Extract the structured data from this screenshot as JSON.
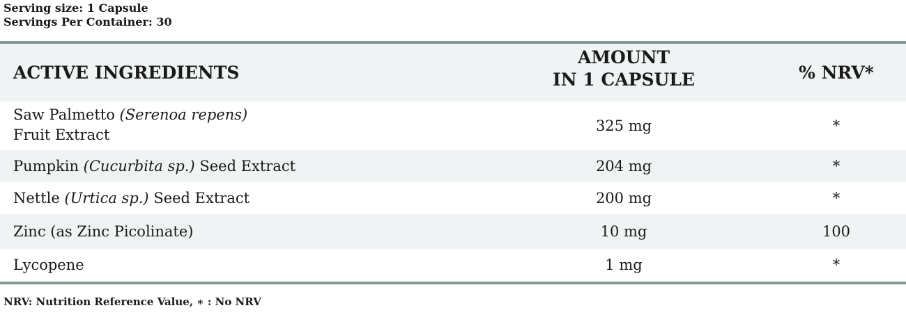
{
  "serving": {
    "size": "Serving size: 1 Capsule",
    "per_container": "Servings Per Container: 30"
  },
  "table": {
    "headers": {
      "ingredient": "ACTIVE INGREDIENTS",
      "amount_line1": "AMOUNT",
      "amount_line2": "IN 1 CAPSULE",
      "nrv": "% NRV*"
    },
    "rows": [
      {
        "name": "Saw Palmetto ",
        "latin": "(Serenoa repens)",
        "name_line2": "Fruit Extract",
        "amount": "325 mg",
        "nrv": "*"
      },
      {
        "name": "Pumpkin ",
        "latin": "(Cucurbita sp.)",
        "suffix": " Seed Extract",
        "amount": "204 mg",
        "nrv": "*"
      },
      {
        "name": "Nettle ",
        "latin": "(Urtica sp.)",
        "suffix": " Seed Extract",
        "amount": "200 mg",
        "nrv": "*"
      },
      {
        "name": "Zinc (as Zinc Picolinate)",
        "amount": "10 mg",
        "nrv": "100"
      },
      {
        "name": "Lycopene",
        "amount": "1 mg",
        "nrv": "*"
      }
    ]
  },
  "footnote": "NRV: Nutrition Reference Value, ∗ : No NRV",
  "colors": {
    "rule": "#7e9a95",
    "shade": "#f0f3f3",
    "text": "#1a1a1a"
  }
}
